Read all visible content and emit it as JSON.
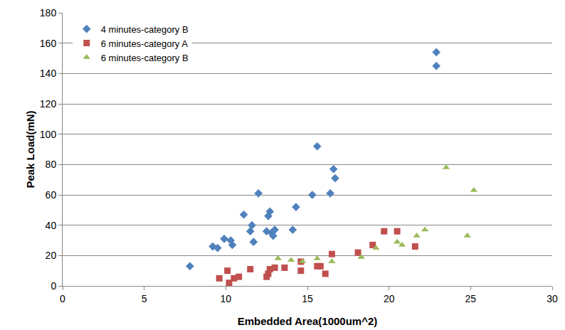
{
  "chart_data": {
    "type": "scatter",
    "x_label": "Embedded Area(1000um^2)",
    "y_label": "Peak Load(mN)",
    "xlim": [
      0,
      30
    ],
    "xticks": [
      0,
      5,
      10,
      15,
      20,
      25,
      30
    ],
    "ylim": [
      0,
      180
    ],
    "yticks": [
      0,
      20,
      40,
      60,
      80,
      100,
      120,
      140,
      160,
      180
    ],
    "grid": true,
    "legend": "upper left",
    "series": [
      {
        "name": "4 minutes-category B",
        "color": "#4f81bd",
        "marker": "diamond",
        "x": [
          7.8,
          9.2,
          9.5,
          9.9,
          10.3,
          10.4,
          11.1,
          11.5,
          11.6,
          11.7,
          12.0,
          12.5,
          12.6,
          12.7,
          12.8,
          12.9,
          13.0,
          14.1,
          14.3,
          15.3,
          15.6,
          16.4,
          16.6,
          16.7,
          22.9,
          22.9
        ],
        "values": [
          13,
          26,
          25,
          31,
          30,
          27,
          47,
          36,
          40,
          29,
          61,
          36,
          46,
          49,
          35,
          33,
          37,
          37,
          52,
          60,
          92,
          61,
          77,
          71,
          154,
          145
        ]
      },
      {
        "name": "6 minutes-category A",
        "color": "#c0504d",
        "marker": "square",
        "x": [
          9.6,
          10.1,
          10.2,
          10.5,
          10.8,
          11.5,
          12.5,
          12.6,
          12.7,
          13.0,
          13.6,
          14.6,
          14.6,
          15.6,
          15.8,
          16.1,
          16.5,
          18.1,
          19.0,
          19.7,
          20.5,
          21.6
        ],
        "values": [
          5,
          10,
          2,
          5,
          6,
          11,
          6,
          8,
          11,
          12,
          12,
          10,
          16,
          13,
          13,
          8,
          21,
          22,
          27,
          36,
          36,
          26
        ]
      },
      {
        "name": "6 minutes-category B",
        "color": "#9bbb59",
        "marker": "triangle-up",
        "x": [
          13.2,
          14.0,
          14.7,
          15.6,
          16.5,
          18.3,
          19.2,
          20.5,
          20.8,
          21.7,
          22.2,
          23.5,
          24.8,
          25.2
        ],
        "values": [
          18,
          17,
          16,
          18,
          16,
          19,
          25,
          29,
          27,
          33,
          37,
          78,
          33,
          63
        ]
      }
    ]
  }
}
